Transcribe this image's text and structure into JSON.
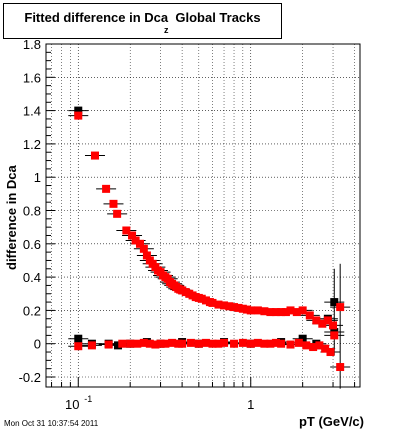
{
  "title": {
    "main": "Fitted difference in Dca",
    "sub": "z",
    "suffix": "Global Tracks"
  },
  "timestamp": "Mon Oct 31 10:37:54 2011",
  "chart_data": {
    "type": "scatter",
    "x_scale": "log",
    "xlabel": "pT (GeV/c)",
    "ylabel": "difference in Dca",
    "xlim": [
      0.065,
      4.3
    ],
    "ylim": [
      -0.26,
      1.8
    ],
    "grid": true,
    "y_ticks": [
      -0.2,
      0,
      0.2,
      0.4,
      0.6,
      0.8,
      1,
      1.2,
      1.4,
      1.6,
      1.8
    ],
    "y_tick_labels": [
      "-0.2",
      "0",
      "0.2",
      "0.4",
      "0.6",
      "0.8",
      "1",
      "1.2",
      "1.4",
      "1.6",
      "1.8"
    ],
    "x_tick_labels": [
      {
        "value": 0.1,
        "base": "10",
        "exp": "-1"
      },
      {
        "value": 1,
        "base": "1",
        "exp": ""
      }
    ],
    "colors": {
      "black": "#000000",
      "red": "#ff0000"
    },
    "series": [
      {
        "color": "#000000",
        "points": [
          [
            0.1,
            1.4
          ],
          [
            0.1,
            0.03
          ],
          [
            0.12,
            0.0
          ],
          [
            0.15,
            0.0
          ],
          [
            0.17,
            -0.01
          ],
          [
            0.2,
            0.0
          ],
          [
            0.25,
            0.01
          ],
          [
            0.3,
            0.0
          ],
          [
            0.4,
            0.01
          ],
          [
            0.5,
            0.0
          ],
          [
            0.7,
            0.01
          ],
          [
            1.0,
            0.0
          ],
          [
            1.5,
            0.01
          ],
          [
            2.0,
            0.03
          ],
          [
            2.4,
            0.0
          ],
          [
            2.8,
            0.15
          ],
          [
            3.05,
            0.25
          ],
          [
            3.05,
            0.07
          ]
        ]
      },
      {
        "color": "#ff0000",
        "points": [
          [
            0.1,
            1.37
          ],
          [
            0.125,
            1.13
          ],
          [
            0.145,
            0.93
          ],
          [
            0.16,
            0.84
          ],
          [
            0.168,
            0.78
          ],
          [
            0.19,
            0.68
          ],
          [
            0.205,
            0.65
          ],
          [
            0.215,
            0.62
          ],
          [
            0.228,
            0.6
          ],
          [
            0.24,
            0.57
          ],
          [
            0.25,
            0.53
          ],
          [
            0.26,
            0.5
          ],
          [
            0.27,
            0.48
          ],
          [
            0.28,
            0.46
          ],
          [
            0.29,
            0.44
          ],
          [
            0.3,
            0.43
          ],
          [
            0.31,
            0.41
          ],
          [
            0.32,
            0.4
          ],
          [
            0.33,
            0.39
          ],
          [
            0.34,
            0.37
          ],
          [
            0.35,
            0.36
          ],
          [
            0.36,
            0.35
          ],
          [
            0.37,
            0.34
          ],
          [
            0.38,
            0.33
          ],
          [
            0.39,
            0.325
          ],
          [
            0.4,
            0.32
          ],
          [
            0.42,
            0.31
          ],
          [
            0.44,
            0.3
          ],
          [
            0.46,
            0.29
          ],
          [
            0.48,
            0.28
          ],
          [
            0.5,
            0.275
          ],
          [
            0.52,
            0.27
          ],
          [
            0.55,
            0.26
          ],
          [
            0.58,
            0.25
          ],
          [
            0.6,
            0.245
          ],
          [
            0.65,
            0.235
          ],
          [
            0.7,
            0.23
          ],
          [
            0.75,
            0.225
          ],
          [
            0.8,
            0.22
          ],
          [
            0.85,
            0.215
          ],
          [
            0.9,
            0.21
          ],
          [
            0.95,
            0.205
          ],
          [
            1.0,
            0.2
          ],
          [
            1.1,
            0.2
          ],
          [
            1.2,
            0.195
          ],
          [
            1.3,
            0.19
          ],
          [
            1.4,
            0.19
          ],
          [
            1.5,
            0.19
          ],
          [
            1.6,
            0.19
          ],
          [
            1.7,
            0.2
          ],
          [
            1.85,
            0.19
          ],
          [
            2.0,
            0.2
          ],
          [
            2.2,
            0.17
          ],
          [
            2.4,
            0.14
          ],
          [
            2.6,
            0.12
          ],
          [
            2.8,
            0.14
          ],
          [
            3.0,
            0.11
          ],
          [
            3.05,
            0.05
          ],
          [
            3.3,
            0.22
          ],
          [
            3.3,
            -0.14
          ],
          [
            0.1,
            -0.015
          ],
          [
            0.12,
            -0.01
          ],
          [
            0.15,
            -0.005
          ],
          [
            0.18,
            0.0
          ],
          [
            0.2,
            0.0
          ],
          [
            0.22,
            0.0
          ],
          [
            0.24,
            0.005
          ],
          [
            0.26,
            0.0
          ],
          [
            0.28,
            -0.005
          ],
          [
            0.3,
            0.0
          ],
          [
            0.32,
            0.0
          ],
          [
            0.35,
            0.005
          ],
          [
            0.38,
            0.0
          ],
          [
            0.4,
            0.0
          ],
          [
            0.45,
            0.005
          ],
          [
            0.5,
            0.0
          ],
          [
            0.55,
            0.005
          ],
          [
            0.6,
            0.0
          ],
          [
            0.65,
            0.0
          ],
          [
            0.7,
            0.005
          ],
          [
            0.8,
            0.0
          ],
          [
            0.9,
            0.005
          ],
          [
            1.0,
            0.0
          ],
          [
            1.1,
            0.005
          ],
          [
            1.2,
            0.0
          ],
          [
            1.3,
            0.0
          ],
          [
            1.4,
            0.005
          ],
          [
            1.5,
            0.0
          ],
          [
            1.7,
            -0.005
          ],
          [
            1.9,
            0.005
          ],
          [
            2.1,
            -0.01
          ],
          [
            2.3,
            -0.02
          ],
          [
            2.5,
            -0.01
          ],
          [
            2.7,
            -0.03
          ],
          [
            2.9,
            -0.05
          ]
        ]
      }
    ],
    "error_bars": [
      {
        "x": 3.05,
        "low": -0.07,
        "high": 0.45
      },
      {
        "x": 3.3,
        "low": -0.27,
        "high": 0.48
      }
    ]
  }
}
